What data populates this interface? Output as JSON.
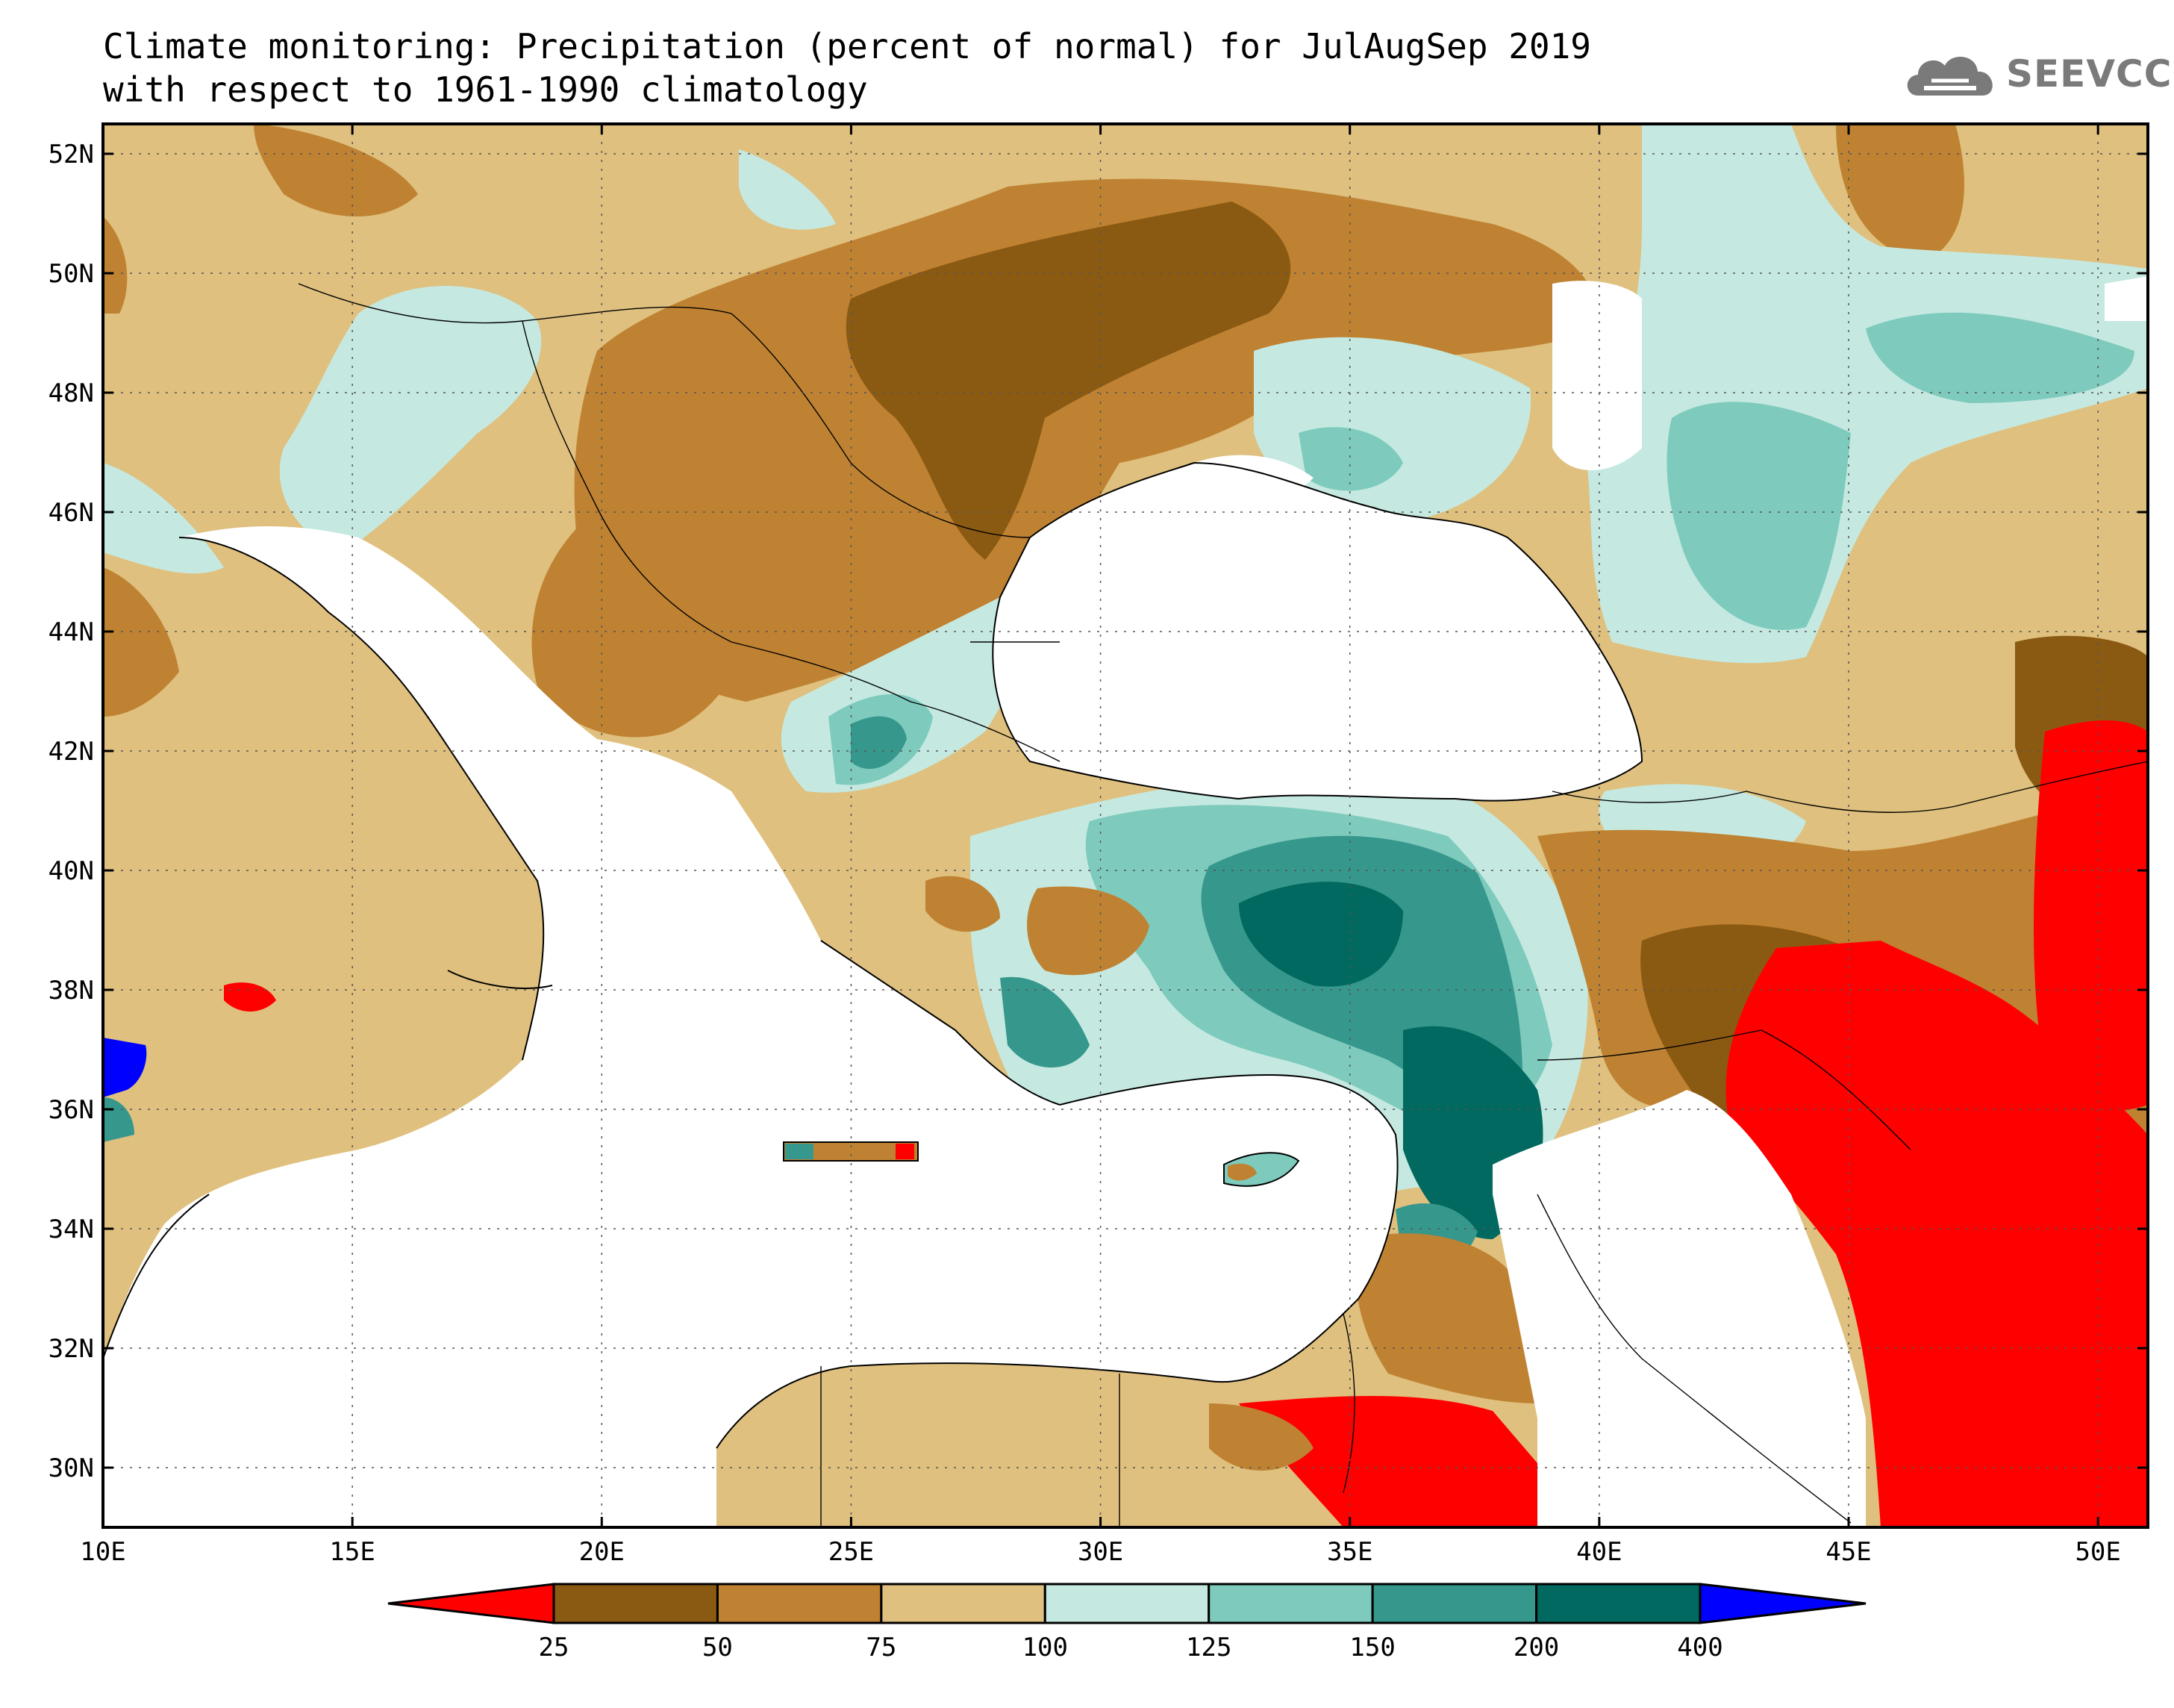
{
  "title": {
    "line1": "Climate monitoring: Precipitation (percent of normal) for JulAugSep 2019",
    "line2": "with respect to 1961-1990 climatology"
  },
  "logo": {
    "text": "SEEVCCC",
    "icon": "cloud-icon",
    "color": "#7a7a7a"
  },
  "map": {
    "lon_range": [
      10,
      51
    ],
    "lat_range": [
      29,
      52.5
    ],
    "lon_ticks": [
      "10E",
      "15E",
      "20E",
      "25E",
      "30E",
      "35E",
      "40E",
      "45E",
      "50E"
    ],
    "lat_ticks": [
      "30N",
      "32N",
      "34N",
      "36N",
      "38N",
      "40N",
      "42N",
      "44N",
      "46N",
      "48N",
      "50N",
      "52N"
    ],
    "grid": "dotted"
  },
  "colorbar": {
    "labels": [
      "25",
      "50",
      "75",
      "100",
      "125",
      "150",
      "200",
      "400"
    ],
    "colors": [
      "#ff0000",
      "#8b5a12",
      "#bf8232",
      "#dfc07e",
      "#c5e9e1",
      "#7ecbbd",
      "#36978c",
      "#01695f",
      "#0000ff"
    ]
  }
}
